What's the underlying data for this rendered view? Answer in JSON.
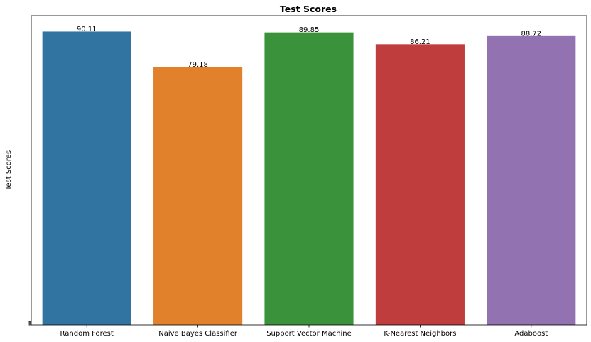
{
  "chart_data": {
    "type": "bar",
    "title": "Test Scores",
    "xlabel": "",
    "ylabel": "Test Scores",
    "categories": [
      "Random Forest",
      "Naive Bayes Classifier",
      "Support Vector Machine",
      "K-Nearest Neighbors",
      "Adaboost"
    ],
    "values": [
      90.11,
      79.18,
      89.85,
      86.21,
      88.72
    ],
    "data_labels": [
      "90.11",
      "79.18",
      "89.85",
      "86.21",
      "88.72"
    ],
    "colors": [
      "#3274a1",
      "#e1812c",
      "#3a923a",
      "#c03d3e",
      "#9372b2"
    ],
    "ylim": [
      0,
      95
    ],
    "grid": false,
    "legend": "none"
  }
}
